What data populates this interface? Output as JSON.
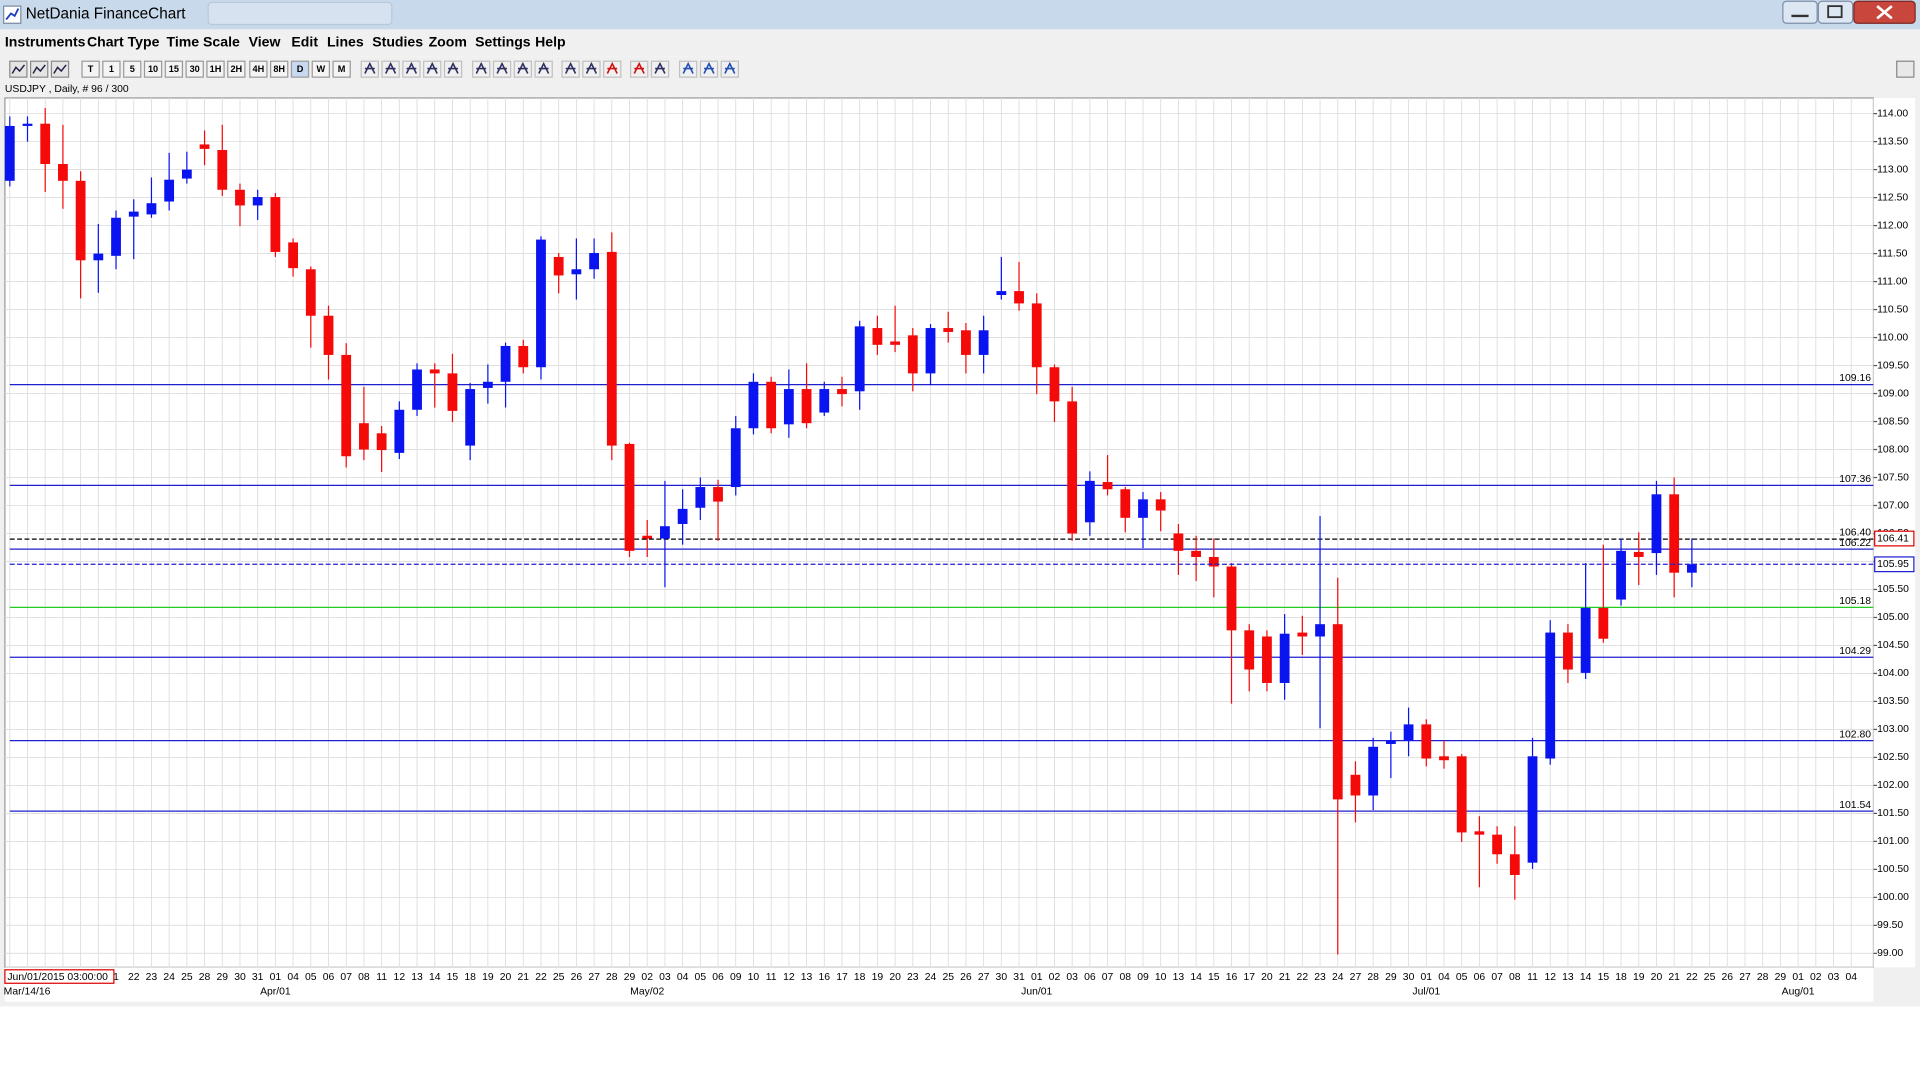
{
  "window": {
    "title": "NetDania FinanceChart"
  },
  "menu": [
    "Instruments",
    "Chart Type",
    "Time Scale",
    "View",
    "Edit",
    "Lines",
    "Studies",
    "Zoom",
    "Settings",
    "Help"
  ],
  "toolbar": {
    "timeframes": [
      "T",
      "1",
      "5",
      "10",
      "15",
      "30",
      "1H",
      "2H",
      "4H",
      "8H",
      "D",
      "W",
      "M"
    ]
  },
  "chart_data": {
    "type": "candlestick",
    "title": "USDJPY , Daily, # 96 / 300",
    "categories": [
      null,
      null,
      null,
      null,
      null,
      null,
      "1",
      "22",
      "23",
      "24",
      "25",
      "28",
      "29",
      "30",
      "31",
      "01",
      "04",
      "05",
      "06",
      "07",
      "08",
      "11",
      "12",
      "13",
      "14",
      "15",
      "18",
      "19",
      "20",
      "21",
      "22",
      "25",
      "26",
      "27",
      "28",
      "29",
      "02",
      "03",
      "04",
      "05",
      "06",
      "09",
      "10",
      "11",
      "12",
      "13",
      "16",
      "17",
      "18",
      "19",
      "20",
      "23",
      "24",
      "25",
      "26",
      "27",
      "30",
      "31",
      "01",
      "02",
      "03",
      "06",
      "07",
      "08",
      "09",
      "10",
      "13",
      "14",
      "15",
      "16",
      "17",
      "20",
      "21",
      "22",
      "23",
      "24",
      "27",
      "28",
      "29",
      "30",
      "01",
      "04",
      "05",
      "06",
      "07",
      "08",
      "11",
      "12",
      "13",
      "14",
      "15",
      "18",
      "19",
      "20",
      "21",
      "22",
      "25",
      "26",
      "27",
      "28",
      "29",
      "01",
      "02",
      "03",
      "04"
    ],
    "period_labels": [
      "Mar/14/16",
      null,
      null,
      null,
      null,
      null,
      null,
      null,
      null,
      null,
      null,
      null,
      null,
      null,
      null,
      "Apr/01",
      null,
      null,
      null,
      null,
      null,
      null,
      null,
      null,
      null,
      null,
      null,
      null,
      null,
      null,
      null,
      null,
      null,
      null,
      null,
      null,
      "May/02",
      null,
      null,
      null,
      null,
      null,
      null,
      null,
      null,
      null,
      null,
      null,
      null,
      null,
      null,
      null,
      null,
      null,
      null,
      null,
      null,
      null,
      "Jun/01",
      null,
      null,
      null,
      null,
      null,
      null,
      null,
      null,
      null,
      null,
      null,
      null,
      null,
      null,
      null,
      null,
      null,
      null,
      null,
      null,
      null,
      "Jul/01",
      null,
      null,
      null,
      null,
      null,
      null,
      null,
      null,
      null,
      null,
      null,
      null,
      null,
      null,
      null,
      null,
      null,
      null,
      null,
      null,
      "Aug/01",
      null,
      null,
      null
    ],
    "open": [
      112.8,
      113.78,
      113.82,
      113.1,
      112.8,
      111.38,
      111.46,
      112.16,
      112.2,
      112.43,
      112.84,
      113.45,
      113.35,
      112.64,
      112.36,
      112.51,
      111.7,
      111.22,
      110.39,
      109.69,
      108.47,
      108.29,
      107.94,
      108.71,
      109.43,
      109.36,
      108.07,
      109.1,
      109.21,
      109.85,
      109.47,
      111.44,
      111.13,
      111.22,
      111.53,
      108.1,
      106.46,
      106.41,
      106.67,
      106.96,
      107.33,
      107.33,
      108.38,
      109.21,
      108.45,
      109.08,
      108.66,
      109.08,
      109.04,
      110.17,
      109.93,
      110.04,
      109.36,
      110.17,
      110.13,
      109.69,
      110.76,
      110.83,
      110.61,
      109.47,
      108.86,
      106.7,
      107.42,
      107.29,
      106.78,
      107.11,
      106.5,
      106.19,
      106.08,
      105.91,
      104.77,
      104.66,
      103.83,
      104.73,
      104.66,
      104.88,
      102.19,
      101.82,
      102.74,
      102.8,
      103.09,
      102.52,
      102.52,
      101.18,
      101.12,
      100.77,
      100.62,
      102.48,
      104.73,
      104.01,
      105.17,
      105.32,
      106.17,
      106.15,
      107.2,
      105.8,
      null,
      null,
      null,
      null,
      null,
      null,
      null,
      null,
      null
    ],
    "high": [
      113.95,
      113.95,
      114.1,
      113.8,
      112.97,
      112.03,
      112.27,
      112.47,
      112.86,
      113.3,
      113.32,
      113.7,
      113.8,
      112.75,
      112.64,
      112.58,
      111.77,
      111.27,
      110.57,
      109.9,
      109.12,
      108.42,
      108.86,
      109.54,
      109.54,
      109.71,
      109.19,
      109.52,
      109.91,
      109.96,
      111.81,
      111.51,
      111.77,
      111.77,
      111.88,
      108.12,
      106.74,
      107.44,
      107.29,
      107.5,
      107.46,
      108.6,
      109.36,
      109.3,
      109.43,
      109.54,
      109.21,
      109.3,
      110.3,
      110.39,
      110.57,
      110.17,
      110.24,
      110.46,
      110.26,
      110.39,
      111.44,
      111.35,
      110.79,
      109.52,
      109.12,
      107.61,
      107.9,
      107.33,
      107.24,
      107.24,
      106.67,
      106.46,
      106.41,
      105.97,
      104.88,
      104.77,
      105.06,
      105.03,
      106.81,
      105.71,
      102.43,
      102.85,
      102.96,
      103.39,
      103.18,
      102.8,
      102.56,
      101.45,
      101.27,
      101.27,
      102.85,
      104.95,
      104.88,
      105.97,
      106.3,
      106.41,
      106.52,
      107.44,
      107.5,
      106.41,
      null,
      null,
      null,
      null,
      null,
      null,
      null,
      null,
      null
    ],
    "low": [
      112.7,
      113.5,
      112.6,
      112.3,
      110.7,
      110.8,
      111.22,
      111.4,
      112.14,
      112.27,
      112.75,
      113.08,
      112.53,
      111.99,
      112.1,
      111.44,
      111.09,
      109.82,
      109.25,
      107.68,
      107.81,
      107.6,
      107.83,
      108.6,
      108.75,
      108.49,
      107.81,
      108.82,
      108.75,
      109.36,
      109.25,
      110.79,
      110.68,
      111.05,
      107.81,
      106.08,
      106.08,
      105.54,
      106.3,
      106.74,
      106.37,
      107.18,
      108.27,
      108.29,
      108.21,
      108.38,
      108.6,
      108.77,
      108.71,
      109.69,
      109.74,
      109.04,
      109.15,
      109.91,
      109.36,
      109.36,
      110.68,
      110.48,
      108.99,
      108.49,
      106.37,
      106.46,
      107.18,
      106.52,
      106.24,
      106.54,
      105.76,
      105.65,
      105.36,
      103.46,
      103.68,
      103.68,
      103.53,
      104.33,
      103.02,
      98.98,
      101.34,
      101.56,
      102.13,
      102.52,
      102.34,
      102.3,
      100.99,
      100.18,
      100.6,
      99.96,
      100.51,
      102.37,
      103.83,
      103.9,
      104.55,
      105.21,
      105.58,
      105.76,
      105.36,
      105.54,
      null,
      null,
      null,
      null,
      null,
      null,
      null,
      null,
      null
    ],
    "close": [
      113.78,
      113.82,
      113.1,
      112.8,
      111.38,
      111.5,
      112.14,
      112.25,
      112.4,
      112.82,
      113.0,
      113.37,
      112.64,
      112.36,
      112.51,
      111.53,
      111.24,
      110.39,
      109.69,
      107.88,
      108.0,
      107.99,
      108.71,
      109.43,
      109.36,
      108.69,
      109.08,
      109.21,
      109.85,
      109.47,
      111.75,
      111.11,
      111.22,
      111.51,
      108.07,
      106.19,
      106.41,
      106.63,
      106.94,
      107.33,
      107.07,
      108.38,
      109.21,
      108.38,
      109.08,
      108.47,
      109.08,
      108.99,
      110.2,
      109.87,
      109.87,
      109.36,
      110.17,
      110.1,
      109.69,
      110.13,
      110.83,
      110.61,
      109.47,
      108.86,
      106.5,
      107.44,
      107.29,
      106.78,
      107.11,
      106.91,
      106.19,
      106.08,
      105.91,
      104.77,
      104.07,
      103.83,
      104.71,
      104.66,
      104.88,
      101.75,
      101.82,
      102.69,
      102.8,
      103.09,
      102.48,
      102.45,
      101.16,
      101.12,
      100.77,
      100.4,
      102.52,
      104.73,
      104.07,
      105.17,
      104.62,
      106.19,
      106.08,
      107.2,
      105.8,
      105.95,
      null,
      null,
      null,
      null,
      null,
      null,
      null,
      null,
      null
    ],
    "up_color": "#0a14f0",
    "down_color": "#f50a0a",
    "ylim": [
      98.75,
      114.28
    ],
    "yticks": [
      {
        "value": 99,
        "label": "99.00"
      },
      {
        "value": 99.5,
        "label": "99.50"
      },
      {
        "value": 100,
        "label": "100.00"
      },
      {
        "value": 100.5,
        "label": "100.50"
      },
      {
        "value": 101,
        "label": "101.00"
      },
      {
        "value": 101.5,
        "label": "101.50"
      },
      {
        "value": 102,
        "label": "102.00"
      },
      {
        "value": 102.5,
        "label": "102.50"
      },
      {
        "value": 103,
        "label": "103.00"
      },
      {
        "value": 103.5,
        "label": "103.50"
      },
      {
        "value": 104,
        "label": "104.00"
      },
      {
        "value": 104.5,
        "label": "104.50"
      },
      {
        "value": 105,
        "label": "105.00"
      },
      {
        "value": 105.5,
        "label": "105.50"
      },
      {
        "value": 106,
        "label": "106.00"
      },
      {
        "value": 106.5,
        "label": "106.50"
      },
      {
        "value": 107,
        "label": "107.00"
      },
      {
        "value": 107.5,
        "label": "107.50"
      },
      {
        "value": 108,
        "label": "108.00"
      },
      {
        "value": 108.5,
        "label": "108.50"
      },
      {
        "value": 109,
        "label": "109.00"
      },
      {
        "value": 109.5,
        "label": "109.50"
      },
      {
        "value": 110,
        "label": "110.00"
      },
      {
        "value": 110.5,
        "label": "110.50"
      },
      {
        "value": 111,
        "label": "111.00"
      },
      {
        "value": 111.5,
        "label": "111.50"
      },
      {
        "value": 112,
        "label": "112.00"
      },
      {
        "value": 112.5,
        "label": "112.50"
      },
      {
        "value": 113,
        "label": "113.00"
      },
      {
        "value": 113.5,
        "label": "113.50"
      },
      {
        "value": 114,
        "label": "114.00"
      }
    ],
    "grid": true,
    "lines": [
      {
        "value": 109.16,
        "color": "#1f1fd0"
      },
      {
        "value": 107.36,
        "color": "#1f1fd0"
      },
      {
        "value": 106.4,
        "label": "106.40",
        "color": "#000000",
        "dashed": true
      },
      {
        "value": 106.22,
        "color": "#1f1fd0"
      },
      {
        "value": 105.18,
        "color": "#22cc22"
      },
      {
        "value": 104.29,
        "color": "#1f1fd0"
      },
      {
        "value": 102.8,
        "label": "102.80",
        "color": "#1f1fd0"
      },
      {
        "value": 101.54,
        "color": "#1f1fd0"
      }
    ],
    "price_markers": [
      {
        "value": 106.41,
        "color": "#e00000"
      },
      {
        "value": 105.95,
        "color": "#1f1fd0",
        "dashed": true
      }
    ],
    "cursor_label": "Jun/01/2015 03:00:00"
  }
}
